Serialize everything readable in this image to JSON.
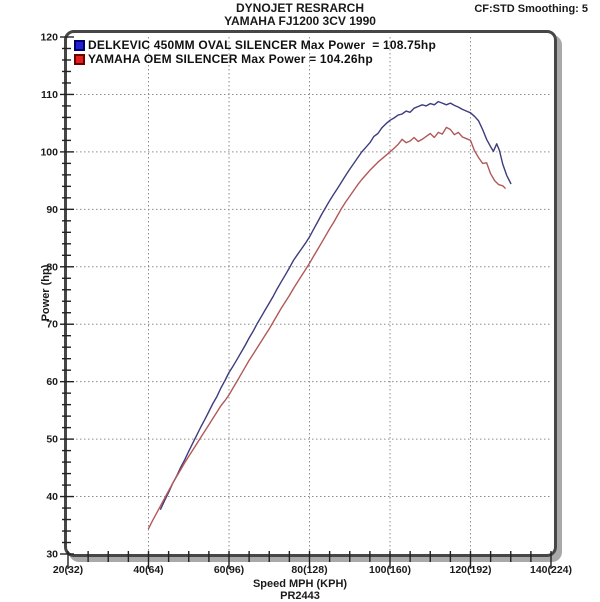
{
  "header": {
    "title_line1": "DYNOJET RESRARCH",
    "title_line2": "YAMAHA FJ1200 3CV 1990",
    "smoothing": "CF:STD Smoothing: 5"
  },
  "legend": {
    "items": [
      {
        "label": "DELKEVIC 450MM OVAL SILENCER Max Power  = 108.75hp",
        "swatch_fill": "#2121cf",
        "swatch_border": "#000070"
      },
      {
        "label": "YAMAHA OEM SILENCER Max Power = 104.26hp",
        "swatch_fill": "#e01f1f",
        "swatch_border": "#6e0000"
      }
    ]
  },
  "footer": {
    "xlabel": "Speed MPH (KPH)",
    "run_id": "PR2443"
  },
  "chart_data": {
    "type": "line",
    "title": "DYNOJET RESRARCH",
    "subtitle": "YAMAHA FJ1200 3CV 1990",
    "xlabel": "Speed MPH (KPH)",
    "ylabel": "Power (hp)",
    "xlim": [
      20,
      140
    ],
    "ylim": [
      30,
      120
    ],
    "x_minor_step": 5,
    "y_minor_step": 2,
    "x_major_step": 20,
    "y_major_step": 10,
    "grid": {
      "style": "dashed",
      "color": "#8d8d8d",
      "x_lines": [
        40,
        60,
        80,
        100,
        120
      ],
      "y_lines": [
        40,
        50,
        60,
        70,
        80,
        90,
        100,
        110
      ]
    },
    "x_ticks": [
      {
        "v": 20,
        "label": "20(32)"
      },
      {
        "v": 40,
        "label": "40(64)"
      },
      {
        "v": 60,
        "label": "60(96)"
      },
      {
        "v": 80,
        "label": "80(128)"
      },
      {
        "v": 100,
        "label": "100(160)"
      },
      {
        "v": 120,
        "label": "120(192)"
      },
      {
        "v": 140,
        "label": "140(224)"
      }
    ],
    "y_ticks": [
      {
        "v": 120,
        "label": "120"
      },
      {
        "v": 110,
        "label": "110"
      },
      {
        "v": 100,
        "label": "100"
      },
      {
        "v": 90,
        "label": "90"
      },
      {
        "v": 80,
        "label": "80"
      },
      {
        "v": 70,
        "label": "70"
      },
      {
        "v": 60,
        "label": "60"
      },
      {
        "v": 50,
        "label": "50"
      },
      {
        "v": 40,
        "label": "40"
      },
      {
        "v": 30,
        "label": "30"
      }
    ],
    "series": [
      {
        "name": "DELKEVIC 450MM OVAL SILENCER",
        "max_power_hp": 108.75,
        "color": "#3d3d7d",
        "points": [
          [
            43,
            37.8
          ],
          [
            44,
            39.3
          ],
          [
            45,
            40.7
          ],
          [
            46,
            42.3
          ],
          [
            47,
            43.6
          ],
          [
            48,
            45.1
          ],
          [
            49,
            46.4
          ],
          [
            50,
            47.9
          ],
          [
            51,
            49.3
          ],
          [
            52,
            50.7
          ],
          [
            53,
            52.1
          ],
          [
            54,
            53.4
          ],
          [
            55,
            54.8
          ],
          [
            56,
            56.2
          ],
          [
            57,
            57.4
          ],
          [
            58,
            58.9
          ],
          [
            59,
            60.2
          ],
          [
            60,
            61.6
          ],
          [
            61,
            62.7
          ],
          [
            62,
            63.9
          ],
          [
            63,
            65.1
          ],
          [
            64,
            66.3
          ],
          [
            65,
            67.6
          ],
          [
            66,
            68.8
          ],
          [
            67,
            70.1
          ],
          [
            68,
            71.3
          ],
          [
            69,
            72.5
          ],
          [
            70,
            73.7
          ],
          [
            71,
            74.9
          ],
          [
            72,
            76.2
          ],
          [
            73,
            77.4
          ],
          [
            74,
            78.6
          ],
          [
            75,
            79.8
          ],
          [
            76,
            81.1
          ],
          [
            77,
            82.1
          ],
          [
            78,
            83.1
          ],
          [
            79,
            84.1
          ],
          [
            80,
            85.2
          ],
          [
            81,
            86.5
          ],
          [
            82,
            87.8
          ],
          [
            83,
            89.1
          ],
          [
            84,
            90.3
          ],
          [
            85,
            91.5
          ],
          [
            86,
            92.6
          ],
          [
            87,
            93.7
          ],
          [
            88,
            94.8
          ],
          [
            89,
            95.9
          ],
          [
            90,
            97.0
          ],
          [
            91,
            98.0
          ],
          [
            92,
            99.0
          ],
          [
            93,
            100.0
          ],
          [
            94,
            100.8
          ],
          [
            95,
            101.6
          ],
          [
            96,
            102.7
          ],
          [
            97,
            103.2
          ],
          [
            98,
            104.2
          ],
          [
            99,
            104.9
          ],
          [
            100,
            105.5
          ],
          [
            101,
            105.9
          ],
          [
            102,
            106.4
          ],
          [
            103,
            106.6
          ],
          [
            104,
            107.1
          ],
          [
            105,
            106.9
          ],
          [
            106,
            107.6
          ],
          [
            107,
            107.9
          ],
          [
            108,
            108.2
          ],
          [
            109,
            108.0
          ],
          [
            110,
            108.4
          ],
          [
            111,
            108.2
          ],
          [
            112,
            108.75
          ],
          [
            113,
            108.5
          ],
          [
            114,
            108.2
          ],
          [
            115,
            108.5
          ],
          [
            116,
            108.1
          ],
          [
            117,
            107.8
          ],
          [
            118,
            107.4
          ],
          [
            119,
            107.1
          ],
          [
            120,
            106.8
          ],
          [
            121,
            106.2
          ],
          [
            122,
            105.4
          ],
          [
            123,
            103.9
          ],
          [
            124,
            102.2
          ],
          [
            125,
            100.9
          ],
          [
            125.7,
            100.1
          ],
          [
            126.5,
            101.4
          ],
          [
            127.2,
            100.2
          ],
          [
            128,
            97.9
          ],
          [
            129,
            95.9
          ],
          [
            130,
            94.5
          ]
        ]
      },
      {
        "name": "YAMAHA OEM SILENCER",
        "max_power_hp": 104.26,
        "color": "#b25858",
        "points": [
          [
            40,
            34.4
          ],
          [
            41,
            35.8
          ],
          [
            42,
            37.1
          ],
          [
            43,
            38.4
          ],
          [
            44,
            39.7
          ],
          [
            45,
            41.0
          ],
          [
            46,
            42.3
          ],
          [
            47,
            43.5
          ],
          [
            48,
            44.7
          ],
          [
            49,
            45.9
          ],
          [
            50,
            47.0
          ],
          [
            51,
            48.1
          ],
          [
            52,
            49.2
          ],
          [
            53,
            50.3
          ],
          [
            54,
            51.4
          ],
          [
            55,
            52.5
          ],
          [
            56,
            53.6
          ],
          [
            57,
            54.7
          ],
          [
            58,
            55.8
          ],
          [
            59,
            56.7
          ],
          [
            60,
            57.7
          ],
          [
            61,
            58.9
          ],
          [
            62,
            60.1
          ],
          [
            63,
            61.3
          ],
          [
            64,
            62.5
          ],
          [
            65,
            63.7
          ],
          [
            66,
            64.8
          ],
          [
            67,
            65.9
          ],
          [
            68,
            67.0
          ],
          [
            69,
            68.1
          ],
          [
            70,
            69.2
          ],
          [
            71,
            70.4
          ],
          [
            72,
            71.6
          ],
          [
            73,
            72.8
          ],
          [
            74,
            73.9
          ],
          [
            75,
            75.0
          ],
          [
            76,
            76.2
          ],
          [
            77,
            77.3
          ],
          [
            78,
            78.4
          ],
          [
            79,
            79.5
          ],
          [
            80,
            80.6
          ],
          [
            81,
            81.8
          ],
          [
            82,
            83.0
          ],
          [
            83,
            84.2
          ],
          [
            84,
            85.4
          ],
          [
            85,
            86.6
          ],
          [
            86,
            87.7
          ],
          [
            87,
            89.0
          ],
          [
            88,
            90.2
          ],
          [
            89,
            91.3
          ],
          [
            90,
            92.3
          ],
          [
            91,
            93.3
          ],
          [
            92,
            94.3
          ],
          [
            93,
            95.2
          ],
          [
            94,
            96.0
          ],
          [
            95,
            96.8
          ],
          [
            96,
            97.5
          ],
          [
            97,
            98.2
          ],
          [
            98,
            98.8
          ],
          [
            99,
            99.4
          ],
          [
            100,
            100.0
          ],
          [
            101,
            100.6
          ],
          [
            102,
            101.3
          ],
          [
            103,
            102.2
          ],
          [
            104,
            101.6
          ],
          [
            105,
            101.9
          ],
          [
            106,
            102.5
          ],
          [
            107,
            101.8
          ],
          [
            108,
            102.2
          ],
          [
            109,
            102.7
          ],
          [
            110,
            103.2
          ],
          [
            111,
            102.5
          ],
          [
            112,
            103.4
          ],
          [
            113,
            103.1
          ],
          [
            114,
            104.26
          ],
          [
            115,
            103.9
          ],
          [
            116,
            103.0
          ],
          [
            117,
            103.4
          ],
          [
            118,
            102.6
          ],
          [
            119,
            102.3
          ],
          [
            120,
            102.0
          ],
          [
            121,
            100.2
          ],
          [
            122,
            99.0
          ],
          [
            123,
            98.0
          ],
          [
            124,
            98.1
          ],
          [
            125,
            96.2
          ],
          [
            126,
            95.0
          ],
          [
            127,
            94.3
          ],
          [
            128,
            94.1
          ],
          [
            128.6,
            93.7
          ]
        ]
      }
    ]
  }
}
